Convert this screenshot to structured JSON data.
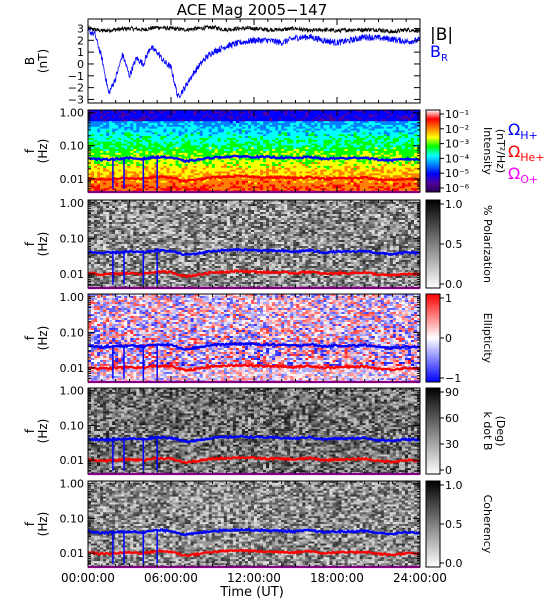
{
  "figure": {
    "title": "ACE Mag 2005−147",
    "time_axis_label": "Time (UT)",
    "time_ticks": [
      "00:00:00",
      "06:00:00",
      "12:00:00",
      "18:00:00",
      "24:00:00"
    ],
    "time_tick_hours": [
      0,
      6,
      12,
      18,
      24
    ],
    "time_range_hours": [
      0,
      24
    ],
    "minor_tick_hours": 1
  },
  "chart_data": [
    {
      "type": "line",
      "ylabel": "B\n(nT)",
      "ylim": [
        -3.3,
        3.8
      ],
      "yticks": [
        -3,
        -2,
        -1,
        0,
        1,
        2,
        3
      ],
      "series": [
        {
          "name": "|B|",
          "color": "#000000",
          "x": [
            0,
            1,
            2,
            3,
            4,
            5,
            6,
            7,
            8,
            9,
            10,
            11,
            12,
            13,
            14,
            15,
            16,
            17,
            18,
            19,
            20,
            21,
            22,
            23,
            24
          ],
          "y": [
            3.0,
            2.8,
            2.9,
            3.0,
            2.9,
            3.1,
            3.0,
            2.9,
            3.0,
            3.1,
            2.9,
            3.0,
            3.0,
            2.9,
            2.9,
            3.0,
            2.8,
            2.9,
            2.8,
            2.9,
            2.9,
            2.9,
            2.7,
            2.9,
            2.8
          ]
        },
        {
          "name": "B",
          "subscript": "R",
          "color": "#0000ff",
          "x": [
            0,
            0.5,
            1,
            1.5,
            2,
            2.5,
            3,
            3.5,
            4,
            4.5,
            5,
            5.5,
            6,
            6.5,
            7,
            7.5,
            8,
            8.5,
            9,
            10,
            11,
            12,
            13,
            14,
            15,
            16,
            17,
            18,
            19,
            20,
            21,
            22,
            23,
            24
          ],
          "y": [
            2.8,
            2.5,
            0.5,
            -2.5,
            -1.2,
            0.8,
            -1.0,
            0.5,
            0.0,
            1.4,
            1.0,
            0.2,
            -0.3,
            -2.8,
            -2.0,
            -1.0,
            -0.2,
            0.5,
            1.0,
            1.5,
            1.8,
            2.0,
            2.0,
            1.8,
            2.2,
            2.3,
            2.0,
            1.8,
            2.0,
            2.3,
            2.2,
            2.1,
            1.9,
            2.0
          ]
        }
      ]
    },
    {
      "type": "heatmap",
      "ylabel": "f\n(Hz)",
      "yscale": "log",
      "ylim": [
        0.004,
        1.2
      ],
      "ytick_labels": [
        "1.00",
        "0.10",
        "0.01"
      ],
      "ytick_values": [
        1.0,
        0.1,
        0.01
      ],
      "colorbar": {
        "label": "Intensity\n(nT²/Hz)",
        "colormap": "rainbow",
        "tick_labels": [
          "10⁻¹",
          "10⁻²",
          "10⁻³",
          "10⁻⁴",
          "10⁻⁵",
          "10⁻⁶"
        ]
      },
      "legend": [
        {
          "name": "Ω",
          "subscript": "H+",
          "color": "#0000ff"
        },
        {
          "name": "Ω",
          "subscript": "He+",
          "color": "#ff0000"
        },
        {
          "name": "Ω",
          "subscript": "O+",
          "color": "#ff00ff"
        }
      ]
    },
    {
      "type": "heatmap",
      "ylabel": "f\n(Hz)",
      "yscale": "log",
      "ylim": [
        0.004,
        1.2
      ],
      "ytick_labels": [
        "1.00",
        "0.10",
        "0.01"
      ],
      "ytick_values": [
        1.0,
        0.1,
        0.01
      ],
      "colorbar": {
        "label": "% Polarization",
        "colormap": "gray",
        "tick_labels": [
          "1.0",
          "0.5",
          "0.0"
        ]
      }
    },
    {
      "type": "heatmap",
      "ylabel": "f\n(Hz)",
      "yscale": "log",
      "ylim": [
        0.004,
        1.2
      ],
      "ytick_labels": [
        "1.00",
        "0.10",
        "0.01"
      ],
      "ytick_values": [
        1.0,
        0.1,
        0.01
      ],
      "colorbar": {
        "label": "Ellipticity",
        "colormap": "bwr",
        "tick_labels": [
          "1",
          "0",
          "−1"
        ]
      }
    },
    {
      "type": "heatmap",
      "ylabel": "f\n(Hz)",
      "yscale": "log",
      "ylim": [
        0.004,
        1.2
      ],
      "ytick_labels": [
        "1.00",
        "0.10",
        "0.01"
      ],
      "ytick_values": [
        1.0,
        0.1,
        0.01
      ],
      "colorbar": {
        "label": "k dot B\n(Deg)",
        "colormap": "gray",
        "tick_labels": [
          "90",
          "60",
          "30",
          "0"
        ]
      }
    },
    {
      "type": "heatmap",
      "ylabel": "f\n(Hz)",
      "yscale": "log",
      "ylim": [
        0.004,
        1.2
      ],
      "ytick_labels": [
        "1.00",
        "0.10",
        "0.01"
      ],
      "ytick_values": [
        1.0,
        0.1,
        0.01
      ],
      "colorbar": {
        "label": "Coherency",
        "colormap": "gray",
        "tick_labels": [
          "1.0",
          "0.5",
          "0.0"
        ]
      }
    }
  ],
  "cyclotron_lines": {
    "x": [
      0,
      1,
      2,
      3,
      4,
      5,
      6,
      7,
      8,
      9,
      10,
      11,
      12,
      13,
      14,
      15,
      16,
      17,
      18,
      19,
      20,
      21,
      22,
      23,
      24
    ],
    "H+": [
      0.042,
      0.038,
      0.04,
      0.042,
      0.04,
      0.046,
      0.044,
      0.034,
      0.038,
      0.044,
      0.046,
      0.048,
      0.046,
      0.045,
      0.044,
      0.042,
      0.046,
      0.04,
      0.042,
      0.042,
      0.044,
      0.038,
      0.036,
      0.04,
      0.038
    ],
    "He+": [
      0.0105,
      0.0095,
      0.01,
      0.0105,
      0.01,
      0.0115,
      0.011,
      0.0085,
      0.0095,
      0.011,
      0.0115,
      0.012,
      0.0115,
      0.011,
      0.011,
      0.0105,
      0.0115,
      0.01,
      0.0105,
      0.0105,
      0.011,
      0.0095,
      0.009,
      0.01,
      0.0095
    ],
    "O+": [
      0.0026,
      0.0024,
      0.0025,
      0.0026,
      0.0025,
      0.0029,
      0.0028,
      0.0021,
      0.0024,
      0.0028,
      0.0029,
      0.003,
      0.0029,
      0.0028,
      0.0028,
      0.0026,
      0.0029,
      0.0025,
      0.0026,
      0.0026,
      0.0028,
      0.0024,
      0.0023,
      0.0025,
      0.0024
    ],
    "dropout_hours": [
      1.8,
      2.6,
      4.0,
      5.0
    ]
  }
}
